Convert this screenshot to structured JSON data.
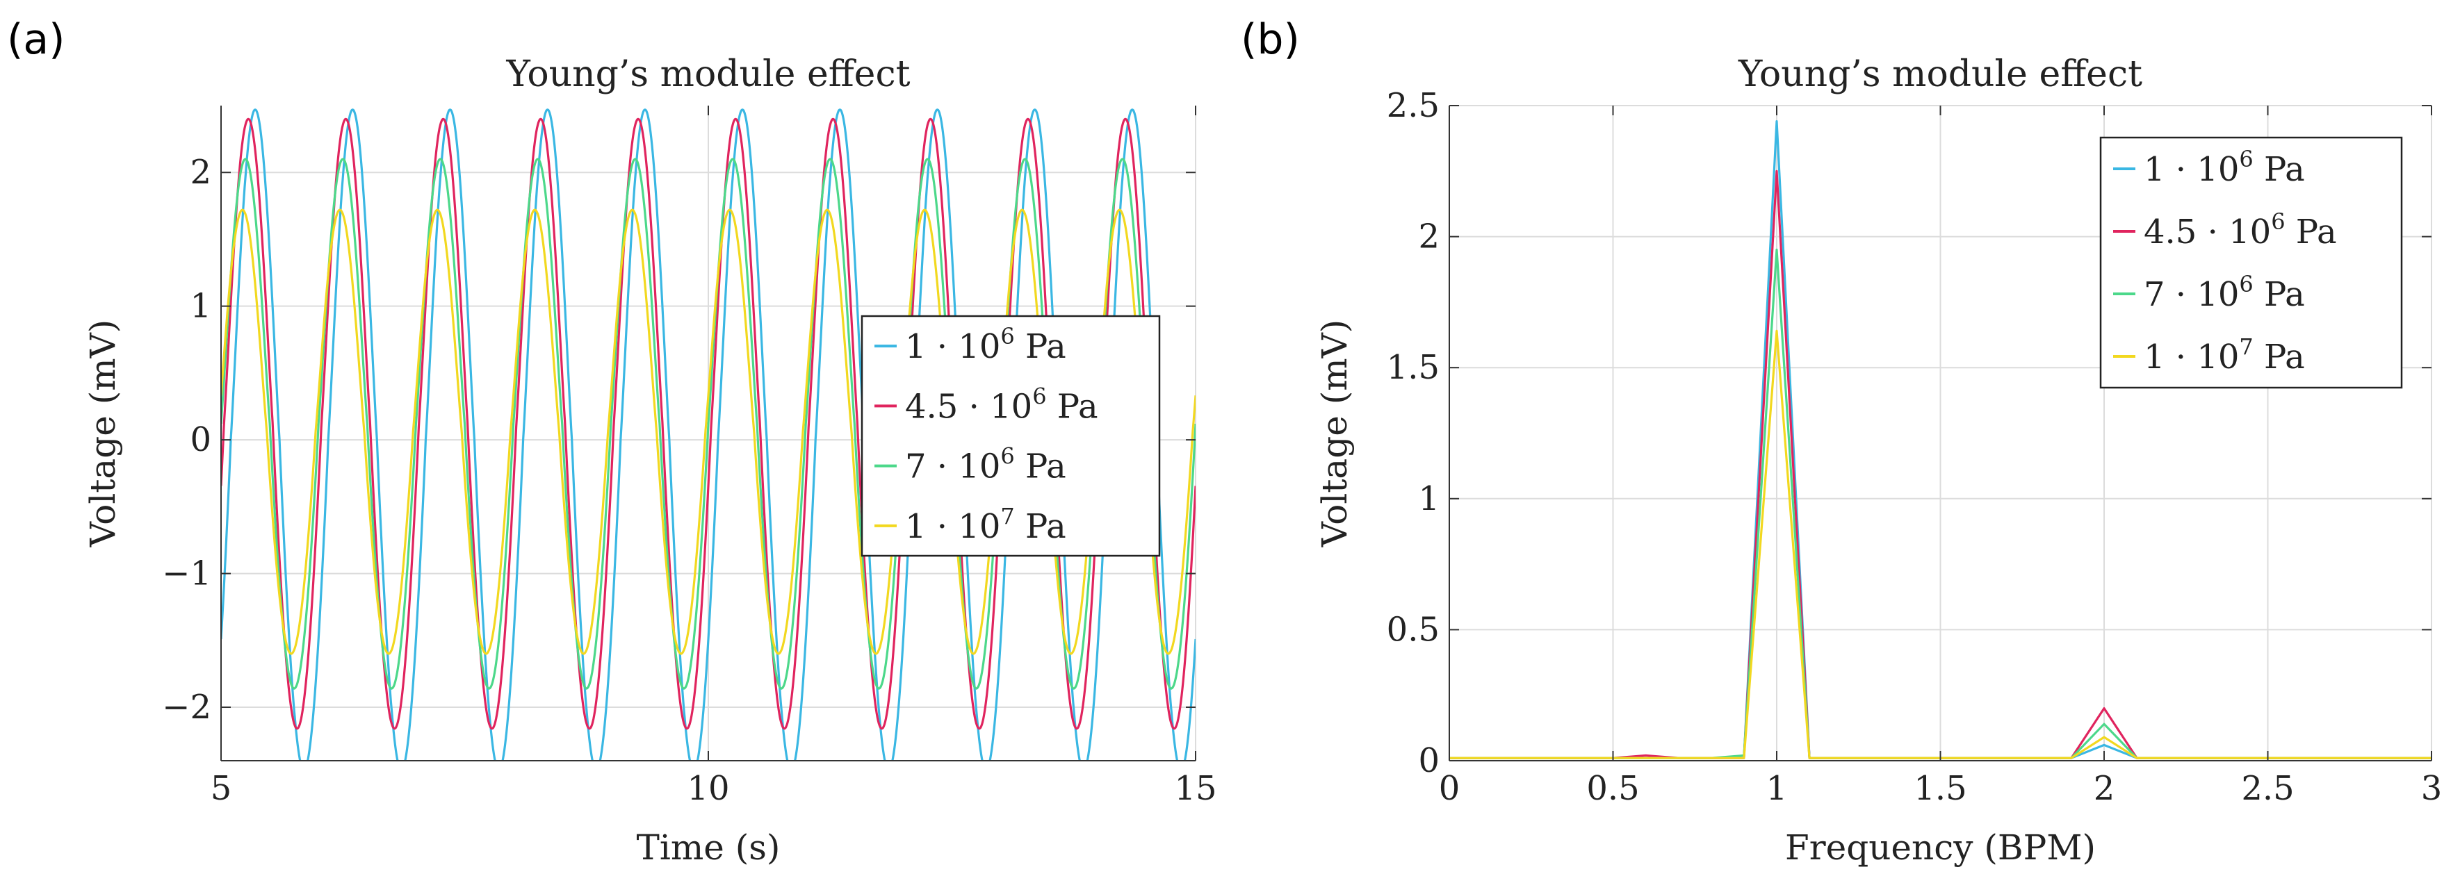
{
  "panel_labels": {
    "a": "(a)",
    "b": "(b)"
  },
  "chart_data": [
    {
      "type": "line",
      "title": "Young’s module effect",
      "xlabel": "Time (s)",
      "ylabel": "Voltage (mV)",
      "xlim": [
        5,
        15
      ],
      "ylim": [
        -2.4,
        2.5
      ],
      "xticks": [
        5,
        10,
        15
      ],
      "yticks": [
        -2,
        -1,
        0,
        1,
        2
      ],
      "xtick_labels": [
        "5",
        "10",
        "15"
      ],
      "ytick_labels": [
        "−2",
        "−1",
        "0",
        "1",
        "2"
      ],
      "grid": true,
      "legend_position": "center-right",
      "series": [
        {
          "name": "1 · 10^6 Pa",
          "legend": {
            "base": "1 · 10",
            "exp": "6",
            "unit": " Pa"
          },
          "color": "#3ab7e3",
          "amplitude": 2.47,
          "offset": 0.0,
          "peak_time": 5.35,
          "period": 1.0
        },
        {
          "name": "4.5 · 10^6 Pa",
          "legend": {
            "base": "4.5 · 10",
            "exp": "6",
            "unit": " Pa"
          },
          "color": "#e0245e",
          "amplitude": 2.28,
          "offset": 0.12,
          "peak_time": 5.28,
          "period": 1.0
        },
        {
          "name": "7 · 10^6 Pa",
          "legend": {
            "base": "7 · 10",
            "exp": "6",
            "unit": " Pa"
          },
          "color": "#4cd88a",
          "amplitude": 1.98,
          "offset": 0.12,
          "peak_time": 5.25,
          "period": 1.0
        },
        {
          "name": "1 · 10^7 Pa",
          "legend": {
            "base": "1 · 10",
            "exp": "7",
            "unit": " Pa"
          },
          "color": "#f2d81f",
          "amplitude": 1.66,
          "offset": 0.06,
          "peak_time": 5.22,
          "period": 1.0
        }
      ]
    },
    {
      "type": "line",
      "title": "Young’s module effect",
      "xlabel": "Frequency (BPM)",
      "ylabel": "Voltage (mV)",
      "xlim": [
        0,
        3
      ],
      "ylim": [
        0,
        2.5
      ],
      "xticks": [
        0,
        0.5,
        1,
        1.5,
        2,
        2.5,
        3
      ],
      "yticks": [
        0,
        0.5,
        1,
        1.5,
        2,
        2.5
      ],
      "xtick_labels": [
        "0",
        "0.5",
        "1",
        "1.5",
        "2",
        "2.5",
        "3"
      ],
      "ytick_labels": [
        "0",
        "0.5",
        "1",
        "1.5",
        "2",
        "2.5"
      ],
      "grid": true,
      "legend_position": "top-right",
      "x": [
        0,
        0.1,
        0.2,
        0.3,
        0.4,
        0.5,
        0.6,
        0.7,
        0.8,
        0.9,
        1.0,
        1.1,
        1.2,
        1.3,
        1.4,
        1.5,
        1.6,
        1.7,
        1.8,
        1.9,
        2.0,
        2.1,
        2.2,
        2.3,
        2.4,
        2.5,
        2.6,
        2.7,
        2.8,
        2.9,
        3.0
      ],
      "series": [
        {
          "name": "1 · 10^6 Pa",
          "legend": {
            "base": "1 · 10",
            "exp": "6",
            "unit": " Pa"
          },
          "color": "#3ab7e3",
          "values": [
            0.01,
            0.01,
            0.01,
            0.01,
            0.01,
            0.01,
            0.01,
            0.01,
            0.01,
            0.01,
            2.44,
            0.01,
            0.01,
            0.01,
            0.01,
            0.01,
            0.01,
            0.01,
            0.01,
            0.01,
            0.06,
            0.01,
            0.01,
            0.01,
            0.01,
            0.01,
            0.01,
            0.01,
            0.01,
            0.01,
            0.01
          ]
        },
        {
          "name": "4.5 · 10^6 Pa",
          "legend": {
            "base": "4.5 · 10",
            "exp": "6",
            "unit": " Pa"
          },
          "color": "#e0245e",
          "values": [
            0.01,
            0.01,
            0.01,
            0.01,
            0.01,
            0.01,
            0.02,
            0.01,
            0.01,
            0.01,
            2.25,
            0.01,
            0.01,
            0.01,
            0.01,
            0.01,
            0.01,
            0.01,
            0.01,
            0.01,
            0.2,
            0.01,
            0.01,
            0.01,
            0.01,
            0.01,
            0.01,
            0.01,
            0.01,
            0.01,
            0.01
          ]
        },
        {
          "name": "7 · 10^6 Pa",
          "legend": {
            "base": "7 · 10",
            "exp": "6",
            "unit": " Pa"
          },
          "color": "#4cd88a",
          "values": [
            0.01,
            0.01,
            0.01,
            0.01,
            0.01,
            0.01,
            0.01,
            0.01,
            0.01,
            0.02,
            1.95,
            0.01,
            0.01,
            0.01,
            0.01,
            0.01,
            0.01,
            0.01,
            0.01,
            0.01,
            0.14,
            0.01,
            0.01,
            0.01,
            0.01,
            0.01,
            0.01,
            0.01,
            0.01,
            0.01,
            0.01
          ]
        },
        {
          "name": "1 · 10^7 Pa",
          "legend": {
            "base": "1 · 10",
            "exp": "7",
            "unit": " Pa"
          },
          "color": "#f2d81f",
          "values": [
            0.01,
            0.01,
            0.01,
            0.01,
            0.01,
            0.01,
            0.01,
            0.01,
            0.01,
            0.01,
            1.64,
            0.01,
            0.01,
            0.01,
            0.01,
            0.01,
            0.01,
            0.01,
            0.01,
            0.01,
            0.09,
            0.01,
            0.01,
            0.01,
            0.01,
            0.01,
            0.01,
            0.01,
            0.01,
            0.01,
            0.01
          ]
        }
      ]
    }
  ]
}
